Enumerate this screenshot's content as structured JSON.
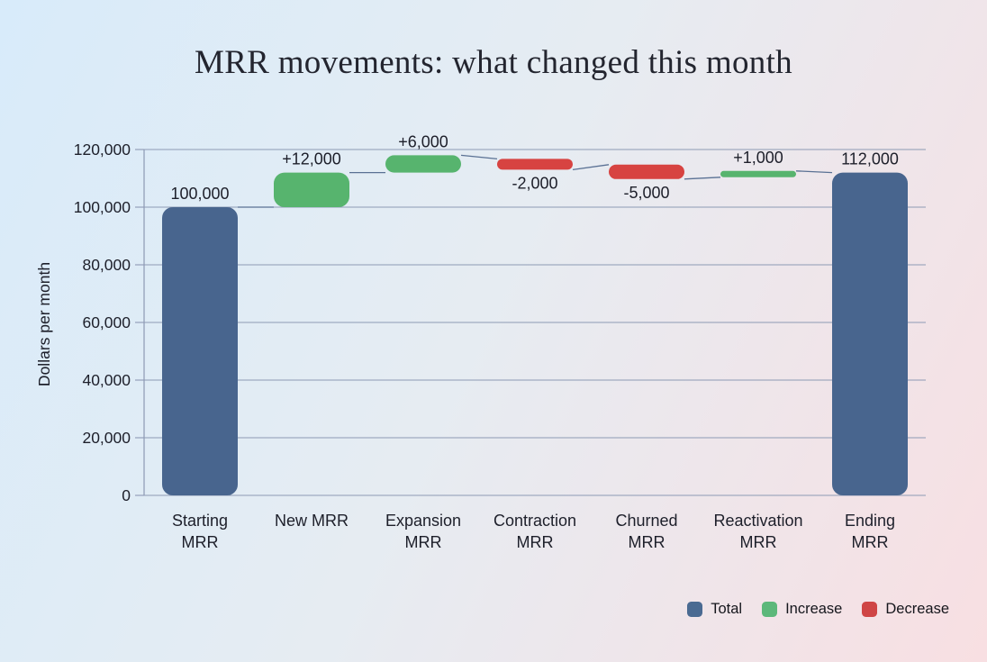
{
  "title": "MRR movements: what changed this month",
  "chart_data": {
    "type": "waterfall",
    "title": "MRR movements: what changed this month",
    "ylabel": "Dollars per month",
    "ylim": [
      0,
      120000
    ],
    "ytick_interval": 20000,
    "grid": true,
    "yticks": [
      {
        "value": 0,
        "label": "0"
      },
      {
        "value": 20000,
        "label": "20,000"
      },
      {
        "value": 40000,
        "label": "40,000"
      },
      {
        "value": 60000,
        "label": "60,000"
      },
      {
        "value": 80000,
        "label": "80,000"
      },
      {
        "value": 100000,
        "label": "100,000"
      },
      {
        "value": 120000,
        "label": "120,000"
      }
    ],
    "bars": [
      {
        "name": "Starting MRR",
        "category_lines": [
          "Starting",
          "MRR"
        ],
        "kind": "total",
        "value": 100000,
        "start": 0,
        "end": 100000,
        "label": "100,000",
        "label_position": "above"
      },
      {
        "name": "New MRR",
        "category_lines": [
          "New MRR"
        ],
        "kind": "increase",
        "value": 12000,
        "start": 100000,
        "end": 112000,
        "label": "+12,000",
        "label_position": "above"
      },
      {
        "name": "Expansion MRR",
        "category_lines": [
          "Expansion",
          "MRR"
        ],
        "kind": "increase",
        "value": 6000,
        "start": 112000,
        "end": 118000,
        "label": "+6,000",
        "label_position": "above"
      },
      {
        "name": "Contraction MRR",
        "category_lines": [
          "Contraction",
          "MRR"
        ],
        "kind": "decrease",
        "value": -2000,
        "start": 118000,
        "end": 116000,
        "label": "-2,000",
        "label_position": "below"
      },
      {
        "name": "Churned MRR",
        "category_lines": [
          "Churned",
          "MRR"
        ],
        "kind": "decrease",
        "value": -5000,
        "start": 116000,
        "end": 111000,
        "label": "-5,000",
        "label_position": "below"
      },
      {
        "name": "Reactivation MRR",
        "category_lines": [
          "Reactivation",
          "MRR"
        ],
        "kind": "increase",
        "value": 1000,
        "start": 111000,
        "end": 112000,
        "label": "+1,000",
        "label_position": "above"
      },
      {
        "name": "Ending MRR",
        "category_lines": [
          "Ending",
          "MRR"
        ],
        "kind": "total",
        "value": 112000,
        "start": 0,
        "end": 112000,
        "label": "112,000",
        "label_position": "above"
      }
    ],
    "legend": {
      "position": "bottom-right",
      "items": [
        {
          "label": "Total",
          "color": "#4a6a92",
          "kind": "total"
        },
        {
          "label": "Increase",
          "color": "#5cb87a",
          "kind": "increase"
        },
        {
          "label": "Decrease",
          "color": "#cf4545",
          "kind": "decrease"
        }
      ]
    },
    "colors": {
      "total": "#48658e",
      "increase": "#57b46e",
      "decrease": "#d74341",
      "grid": "#8d9ab4",
      "axis": "#8d9ab4",
      "connector": "#5a7194",
      "text": "#1d1f2a"
    },
    "background": {
      "gradient_from": "#d8ebfa",
      "gradient_mid": "#e6ecf2",
      "gradient_to": "#f8dfe2"
    }
  }
}
